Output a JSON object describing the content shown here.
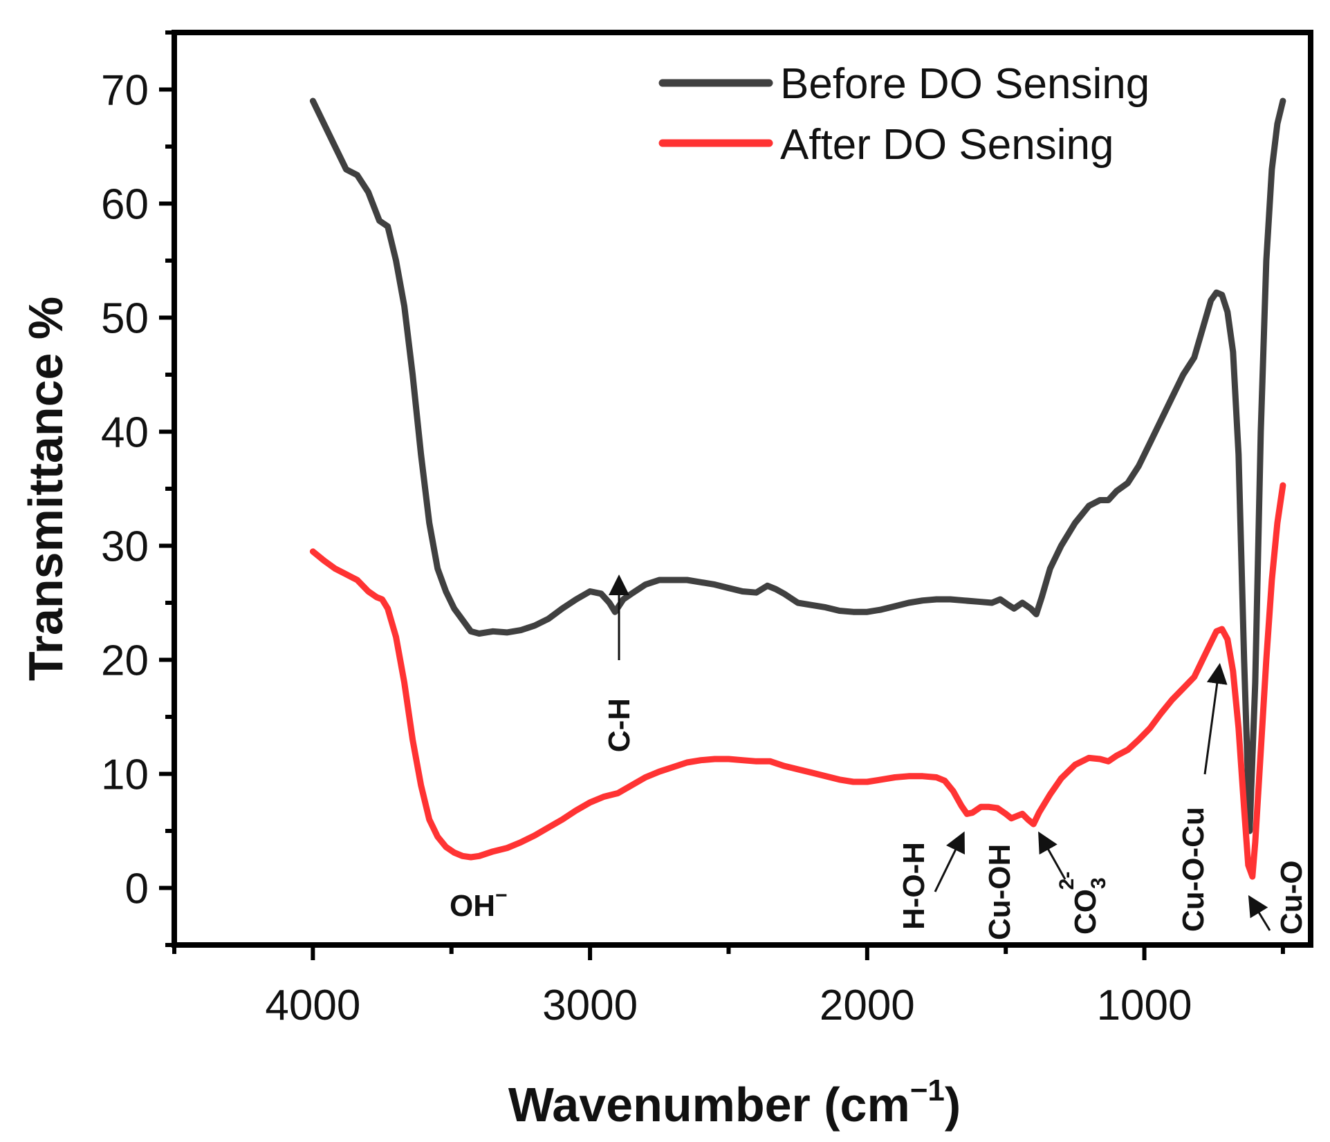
{
  "chart_data": {
    "type": "line",
    "xlabel": "Wavenumber (cm",
    "xlabel_superscript": "−1",
    "xlabel_suffix": ")",
    "ylabel": "Transmittance %",
    "xlim": [
      4500,
      400
    ],
    "ylim": [
      -5,
      75
    ],
    "x_reversed": true,
    "x_ticks": [
      4000,
      3000,
      2000,
      1000
    ],
    "y_ticks": [
      0,
      10,
      20,
      30,
      40,
      50,
      60,
      70
    ],
    "grid": false,
    "legend_position": "top-right",
    "series": [
      {
        "name": "Before DO Sensing",
        "color": "#404040",
        "points": [
          [
            4000,
            69
          ],
          [
            3960,
            67
          ],
          [
            3920,
            65
          ],
          [
            3880,
            63
          ],
          [
            3840,
            62.5
          ],
          [
            3800,
            61
          ],
          [
            3760,
            58.5
          ],
          [
            3730,
            58
          ],
          [
            3700,
            55
          ],
          [
            3670,
            51
          ],
          [
            3640,
            45
          ],
          [
            3610,
            38
          ],
          [
            3580,
            32
          ],
          [
            3550,
            28
          ],
          [
            3520,
            26
          ],
          [
            3490,
            24.5
          ],
          [
            3460,
            23.5
          ],
          [
            3430,
            22.5
          ],
          [
            3400,
            22.3
          ],
          [
            3350,
            22.5
          ],
          [
            3300,
            22.4
          ],
          [
            3250,
            22.6
          ],
          [
            3200,
            23
          ],
          [
            3150,
            23.6
          ],
          [
            3100,
            24.5
          ],
          [
            3050,
            25.3
          ],
          [
            3000,
            26
          ],
          [
            2960,
            25.8
          ],
          [
            2930,
            25
          ],
          [
            2910,
            24.2
          ],
          [
            2880,
            25.3
          ],
          [
            2850,
            25.8
          ],
          [
            2800,
            26.6
          ],
          [
            2750,
            27
          ],
          [
            2700,
            27
          ],
          [
            2650,
            27
          ],
          [
            2600,
            26.8
          ],
          [
            2550,
            26.6
          ],
          [
            2500,
            26.3
          ],
          [
            2450,
            26
          ],
          [
            2400,
            25.9
          ],
          [
            2360,
            26.5
          ],
          [
            2330,
            26.2
          ],
          [
            2300,
            25.8
          ],
          [
            2250,
            25
          ],
          [
            2200,
            24.8
          ],
          [
            2150,
            24.6
          ],
          [
            2100,
            24.3
          ],
          [
            2050,
            24.2
          ],
          [
            2000,
            24.2
          ],
          [
            1950,
            24.4
          ],
          [
            1900,
            24.7
          ],
          [
            1850,
            25
          ],
          [
            1800,
            25.2
          ],
          [
            1750,
            25.3
          ],
          [
            1700,
            25.3
          ],
          [
            1650,
            25.2
          ],
          [
            1600,
            25.1
          ],
          [
            1550,
            25
          ],
          [
            1520,
            25.3
          ],
          [
            1490,
            24.8
          ],
          [
            1470,
            24.5
          ],
          [
            1440,
            25
          ],
          [
            1410,
            24.5
          ],
          [
            1390,
            24
          ],
          [
            1370,
            25.5
          ],
          [
            1340,
            28
          ],
          [
            1300,
            30
          ],
          [
            1250,
            32
          ],
          [
            1200,
            33.5
          ],
          [
            1160,
            34
          ],
          [
            1130,
            34
          ],
          [
            1100,
            34.8
          ],
          [
            1060,
            35.5
          ],
          [
            1020,
            37
          ],
          [
            980,
            39
          ],
          [
            940,
            41
          ],
          [
            900,
            43
          ],
          [
            860,
            45
          ],
          [
            820,
            46.5
          ],
          [
            790,
            49
          ],
          [
            760,
            51.5
          ],
          [
            740,
            52.2
          ],
          [
            720,
            52
          ],
          [
            700,
            50.5
          ],
          [
            680,
            47
          ],
          [
            660,
            38
          ],
          [
            640,
            20
          ],
          [
            620,
            5
          ],
          [
            600,
            18
          ],
          [
            580,
            40
          ],
          [
            560,
            55
          ],
          [
            540,
            63
          ],
          [
            520,
            67
          ],
          [
            500,
            69
          ]
        ]
      },
      {
        "name": "After DO Sensing",
        "color": "#ff3333",
        "points": [
          [
            4000,
            29.5
          ],
          [
            3960,
            28.7
          ],
          [
            3920,
            28
          ],
          [
            3880,
            27.5
          ],
          [
            3840,
            27
          ],
          [
            3800,
            26
          ],
          [
            3770,
            25.5
          ],
          [
            3750,
            25.3
          ],
          [
            3730,
            24.5
          ],
          [
            3700,
            22
          ],
          [
            3670,
            18
          ],
          [
            3640,
            13
          ],
          [
            3610,
            9
          ],
          [
            3580,
            6
          ],
          [
            3550,
            4.5
          ],
          [
            3520,
            3.6
          ],
          [
            3490,
            3.1
          ],
          [
            3460,
            2.8
          ],
          [
            3430,
            2.7
          ],
          [
            3400,
            2.8
          ],
          [
            3350,
            3.2
          ],
          [
            3300,
            3.5
          ],
          [
            3250,
            4
          ],
          [
            3200,
            4.6
          ],
          [
            3150,
            5.3
          ],
          [
            3100,
            6
          ],
          [
            3050,
            6.8
          ],
          [
            3000,
            7.5
          ],
          [
            2950,
            8
          ],
          [
            2900,
            8.3
          ],
          [
            2850,
            9
          ],
          [
            2800,
            9.7
          ],
          [
            2750,
            10.2
          ],
          [
            2700,
            10.6
          ],
          [
            2650,
            11
          ],
          [
            2600,
            11.2
          ],
          [
            2550,
            11.3
          ],
          [
            2500,
            11.3
          ],
          [
            2450,
            11.2
          ],
          [
            2400,
            11.1
          ],
          [
            2350,
            11.1
          ],
          [
            2300,
            10.7
          ],
          [
            2250,
            10.4
          ],
          [
            2200,
            10.1
          ],
          [
            2150,
            9.8
          ],
          [
            2100,
            9.5
          ],
          [
            2050,
            9.3
          ],
          [
            2000,
            9.3
          ],
          [
            1950,
            9.5
          ],
          [
            1900,
            9.7
          ],
          [
            1850,
            9.8
          ],
          [
            1800,
            9.8
          ],
          [
            1750,
            9.7
          ],
          [
            1720,
            9.4
          ],
          [
            1690,
            8.5
          ],
          [
            1660,
            7.2
          ],
          [
            1640,
            6.5
          ],
          [
            1620,
            6.6
          ],
          [
            1590,
            7.1
          ],
          [
            1560,
            7.1
          ],
          [
            1530,
            7
          ],
          [
            1500,
            6.5
          ],
          [
            1480,
            6.1
          ],
          [
            1460,
            6.3
          ],
          [
            1440,
            6.5
          ],
          [
            1420,
            6
          ],
          [
            1400,
            5.6
          ],
          [
            1380,
            6.6
          ],
          [
            1340,
            8.2
          ],
          [
            1300,
            9.6
          ],
          [
            1250,
            10.8
          ],
          [
            1200,
            11.4
          ],
          [
            1160,
            11.3
          ],
          [
            1130,
            11.1
          ],
          [
            1100,
            11.6
          ],
          [
            1060,
            12.1
          ],
          [
            1020,
            13
          ],
          [
            980,
            14
          ],
          [
            940,
            15.3
          ],
          [
            900,
            16.5
          ],
          [
            860,
            17.5
          ],
          [
            820,
            18.5
          ],
          [
            790,
            20
          ],
          [
            760,
            21.5
          ],
          [
            740,
            22.5
          ],
          [
            720,
            22.7
          ],
          [
            700,
            21.8
          ],
          [
            680,
            19
          ],
          [
            660,
            14
          ],
          [
            640,
            7
          ],
          [
            625,
            2
          ],
          [
            610,
            1
          ],
          [
            600,
            4
          ],
          [
            580,
            12
          ],
          [
            560,
            20
          ],
          [
            540,
            27
          ],
          [
            520,
            32
          ],
          [
            500,
            35.3
          ]
        ]
      }
    ],
    "annotations": [
      {
        "text": "C-H",
        "x": 2910,
        "y": 24.2,
        "type": "arrow-up",
        "rotated": true
      },
      {
        "text": "OH",
        "superscript": "−",
        "x": 3400,
        "y": 2.7,
        "type": "label"
      },
      {
        "text": "H-O-H",
        "x": 1640,
        "y": 6.5,
        "type": "arrow",
        "rotated": true
      },
      {
        "text": "Cu-OH",
        "x": 1510,
        "y": 6.3,
        "type": "label",
        "rotated": true
      },
      {
        "text": "CO",
        "subscript": "3",
        "superscript": "2-",
        "x": 1400,
        "y": 5.6,
        "type": "arrow",
        "rotated": true
      },
      {
        "text": "Cu-O-Cu",
        "x": 730,
        "y": 22.7,
        "type": "arrow",
        "rotated": true
      },
      {
        "text": "Cu-O",
        "x": 615,
        "y": 1,
        "type": "arrow",
        "rotated": true
      }
    ]
  }
}
